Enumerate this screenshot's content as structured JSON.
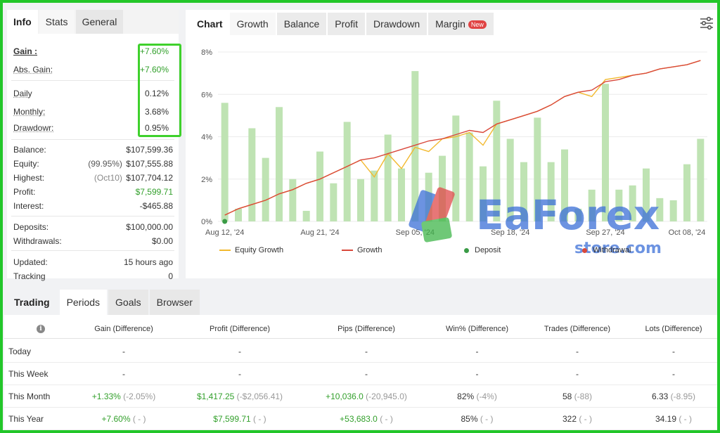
{
  "info_panel": {
    "tabs": [
      "Info",
      "Stats",
      "General"
    ],
    "gain": {
      "label": "Gain :",
      "value": "+7.60%"
    },
    "abs_gain": {
      "label": "Abs. Gain:",
      "value": "+7.60%"
    },
    "daily": {
      "label": "Daily",
      "value": "0.12%"
    },
    "monthly": {
      "label": "Monthly:",
      "value": "3.68%"
    },
    "drawdown": {
      "label": "Drawdowr:",
      "value": "0.95%"
    },
    "balance": {
      "label": "Balance:",
      "value": "$107,599.36"
    },
    "equity": {
      "label": "Equity:",
      "sub": "(99.95%)",
      "value": "$107,555.88"
    },
    "highest": {
      "label": "Highest:",
      "sub": "(Oct10)",
      "value": "$107,704.12"
    },
    "profit": {
      "label": "Profit:",
      "value": "$7,599.71"
    },
    "interest": {
      "label": "Interest:",
      "value": "-$465.88"
    },
    "deposits": {
      "label": "Deposits:",
      "value": "$100,000.00"
    },
    "withdrawals": {
      "label": "Withdrawals:",
      "value": "$0.00"
    },
    "updated": {
      "label": "Updated:",
      "value": "15 hours ago"
    },
    "tracking": {
      "label": "Tracking",
      "value": "0"
    }
  },
  "chart_panel": {
    "tabs": [
      "Chart",
      "Growth",
      "Balance",
      "Profit",
      "Drawdown",
      "Margin"
    ],
    "new_badge": "New",
    "watermark": {
      "brand": "EaForex",
      "sub": "store.com"
    },
    "legend": [
      "Equity Growth",
      "Growth",
      "Deposit",
      "Withdrawal"
    ],
    "colors": {
      "equity": "#f2b92e",
      "growth": "#d9483b",
      "deposit": "#3a9b46",
      "withdrawal": "#d9483b",
      "bar": "#bfe3b3"
    }
  },
  "chart_data": {
    "type": "line",
    "yticks": [
      "0%",
      "2%",
      "4%",
      "6%",
      "8%"
    ],
    "ylim": [
      0,
      8
    ],
    "xticks": [
      "Aug 12, '24",
      "Aug 21, '24",
      "Sep 05, '24",
      "Sep 18, '24",
      "Sep 27, '24",
      "Oct 08, '24"
    ],
    "bars": [
      5.6,
      0.6,
      4.4,
      3.0,
      5.4,
      2.0,
      0.5,
      3.3,
      1.8,
      4.7,
      2.0,
      2.4,
      4.1,
      2.5,
      7.1,
      2.3,
      3.1,
      5.0,
      4.2,
      2.6,
      5.7,
      3.9,
      2.8,
      4.9,
      2.8,
      3.4,
      0.6,
      1.5,
      6.5,
      1.5,
      1.7,
      2.5,
      1.1,
      1.0,
      2.7,
      3.9
    ],
    "series": [
      {
        "name": "Equity Growth",
        "values": [
          0.3,
          0.6,
          0.8,
          1.0,
          1.3,
          1.5,
          1.8,
          2.0,
          2.3,
          2.6,
          2.9,
          2.1,
          3.2,
          2.5,
          3.5,
          3.3,
          3.9,
          4.0,
          4.2,
          3.6,
          4.6,
          4.8,
          5.0,
          5.2,
          5.5,
          5.9,
          6.1,
          5.9,
          6.7,
          6.8,
          6.9,
          7.0,
          7.2,
          7.3,
          7.4,
          7.6
        ]
      },
      {
        "name": "Growth",
        "values": [
          0.3,
          0.6,
          0.8,
          1.0,
          1.3,
          1.5,
          1.8,
          2.0,
          2.3,
          2.6,
          2.9,
          3.0,
          3.2,
          3.4,
          3.6,
          3.8,
          3.9,
          4.1,
          4.3,
          4.2,
          4.6,
          4.8,
          5.0,
          5.2,
          5.5,
          5.9,
          6.1,
          6.2,
          6.6,
          6.7,
          6.9,
          7.0,
          7.2,
          7.3,
          7.4,
          7.6
        ]
      }
    ],
    "deposit_marker": {
      "x_index": 0,
      "y": 0
    }
  },
  "bottom_panel": {
    "tabs": [
      "Trading",
      "Periods",
      "Goals",
      "Browser"
    ],
    "headers": [
      "Gain (Difference)",
      "Profit (Difference)",
      "Pips (Difference)",
      "Win% (Difference)",
      "Trades (Difference)",
      "Lots (Difference)"
    ],
    "rows": [
      {
        "label": "Today",
        "gain": "-",
        "gain_diff": "",
        "profit": "-",
        "profit_diff": "",
        "pips": "-",
        "pips_diff": "",
        "win": "-",
        "win_diff": "",
        "trades": "-",
        "trades_diff": "",
        "lots": "-",
        "lots_diff": ""
      },
      {
        "label": "This Week",
        "gain": "-",
        "gain_diff": "",
        "profit": "-",
        "profit_diff": "",
        "pips": "-",
        "pips_diff": "",
        "win": "-",
        "win_diff": "",
        "trades": "-",
        "trades_diff": "",
        "lots": "-",
        "lots_diff": ""
      },
      {
        "label": "This Month",
        "gain": "+1.33%",
        "gain_diff": "(-2.05%)",
        "profit": "$1,417.25",
        "profit_diff": "(-$2,056.41)",
        "pips": "+10,036.0",
        "pips_diff": "(-20,945.0)",
        "win": "82%",
        "win_diff": "(-4%)",
        "trades": "58",
        "trades_diff": "(-88)",
        "lots": "6.33",
        "lots_diff": "(-8.95)"
      },
      {
        "label": "This Year",
        "gain": "+7.60%",
        "gain_diff": "( - )",
        "profit": "$7,599.71",
        "profit_diff": "( - )",
        "pips": "+53,683.0",
        "pips_diff": "( - )",
        "win": "85%",
        "win_diff": "( - )",
        "trades": "322",
        "trades_diff": "( - )",
        "lots": "34.19",
        "lots_diff": "( - )"
      }
    ]
  }
}
